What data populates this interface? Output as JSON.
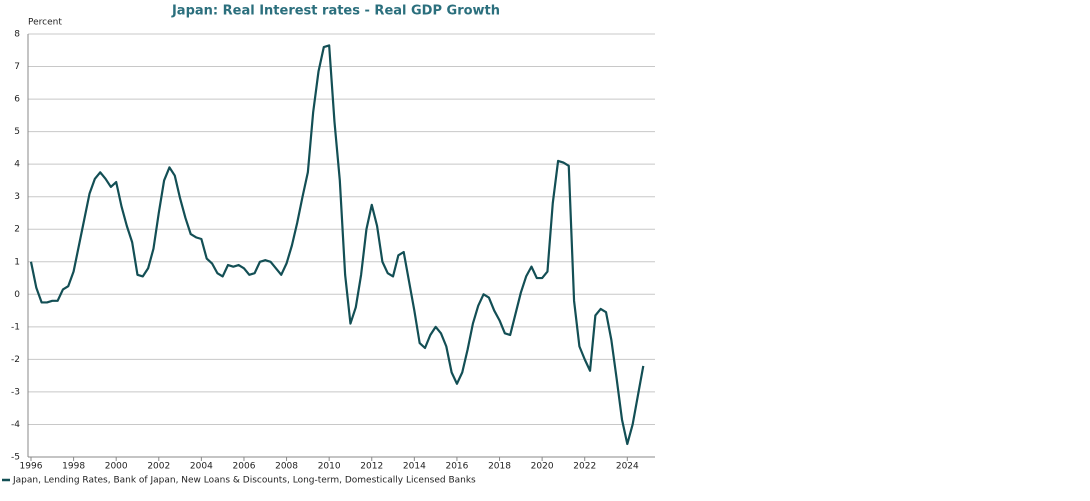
{
  "chart_data": {
    "type": "line",
    "title": "Japan: Real Interest rates - Real GDP Growth",
    "y_label": "Percent",
    "x": [
      1996,
      1996.25,
      1996.5,
      1996.75,
      1997,
      1997.25,
      1997.5,
      1997.75,
      1998,
      1998.25,
      1998.5,
      1998.75,
      1999,
      1999.25,
      1999.5,
      1999.75,
      2000,
      2000.25,
      2000.5,
      2000.75,
      2001,
      2001.25,
      2001.5,
      2001.75,
      2002,
      2002.25,
      2002.5,
      2002.75,
      2003,
      2003.25,
      2003.5,
      2003.75,
      2004,
      2004.25,
      2004.5,
      2004.75,
      2005,
      2005.25,
      2005.5,
      2005.75,
      2006,
      2006.25,
      2006.5,
      2006.75,
      2007,
      2007.25,
      2007.5,
      2007.75,
      2008,
      2008.25,
      2008.5,
      2008.75,
      2009,
      2009.25,
      2009.5,
      2009.75,
      2010,
      2010.25,
      2010.5,
      2010.75,
      2011,
      2011.25,
      2011.5,
      2011.75,
      2012,
      2012.25,
      2012.5,
      2012.75,
      2013,
      2013.25,
      2013.5,
      2013.75,
      2014,
      2014.25,
      2014.5,
      2014.75,
      2015,
      2015.25,
      2015.5,
      2015.75,
      2016,
      2016.25,
      2016.5,
      2016.75,
      2017,
      2017.25,
      2017.5,
      2017.75,
      2018,
      2018.25,
      2018.5,
      2018.75,
      2019,
      2019.25,
      2019.5,
      2019.75,
      2020,
      2020.25,
      2020.5,
      2020.75,
      2021,
      2021.25,
      2021.5,
      2021.75,
      2022,
      2022.25,
      2022.5,
      2022.75,
      2023,
      2023.25,
      2023.5,
      2023.75,
      2024,
      2024.25,
      2024.5,
      2024.75
    ],
    "series": [
      {
        "name": "Japan, Lending Rates, Bank of Japan, New Loans & Discounts, Long-term, Domestically Licensed Banks",
        "color": "#134f55",
        "values": [
          1.0,
          0.2,
          -0.25,
          -0.25,
          -0.2,
          -0.2,
          0.15,
          0.25,
          0.7,
          1.5,
          2.3,
          3.1,
          3.55,
          3.75,
          3.55,
          3.3,
          3.45,
          2.7,
          2.1,
          1.6,
          0.6,
          0.55,
          0.8,
          1.4,
          2.5,
          3.5,
          3.9,
          3.65,
          2.95,
          2.35,
          1.85,
          1.75,
          1.7,
          1.1,
          0.95,
          0.65,
          0.55,
          0.9,
          0.85,
          0.9,
          0.8,
          0.6,
          0.65,
          1.0,
          1.05,
          1.0,
          0.8,
          0.6,
          0.95,
          1.5,
          2.2,
          3.0,
          3.75,
          5.6,
          6.85,
          7.6,
          7.65,
          5.3,
          3.5,
          0.6,
          -0.9,
          -0.4,
          0.6,
          2.0,
          2.75,
          2.1,
          1.0,
          0.65,
          0.55,
          1.2,
          1.3,
          0.4,
          -0.5,
          -1.5,
          -1.65,
          -1.25,
          -1.0,
          -1.2,
          -1.6,
          -2.4,
          -2.75,
          -2.4,
          -1.7,
          -0.9,
          -0.35,
          0.0,
          -0.1,
          -0.5,
          -0.8,
          -1.2,
          -1.25,
          -0.6,
          0.05,
          0.55,
          0.85,
          0.5,
          0.5,
          0.7,
          2.8,
          4.1,
          4.05,
          3.95,
          -0.2,
          -1.6,
          -2.0,
          -2.35,
          -0.65,
          -0.45,
          -0.55,
          -1.4,
          -2.6,
          -3.85,
          -4.6,
          -4.0,
          -3.1,
          -2.2
        ]
      }
    ],
    "xlim": [
      1996,
      2025.3
    ],
    "xticks": [
      1996,
      1998,
      2000,
      2002,
      2004,
      2006,
      2008,
      2010,
      2012,
      2014,
      2016,
      2018,
      2020,
      2022,
      2024
    ],
    "ylim": [
      -5,
      8
    ],
    "yticks": [
      -5,
      -4,
      -3,
      -2,
      -1,
      0,
      1,
      2,
      3,
      4,
      5,
      6,
      7,
      8
    ],
    "grid": true
  }
}
